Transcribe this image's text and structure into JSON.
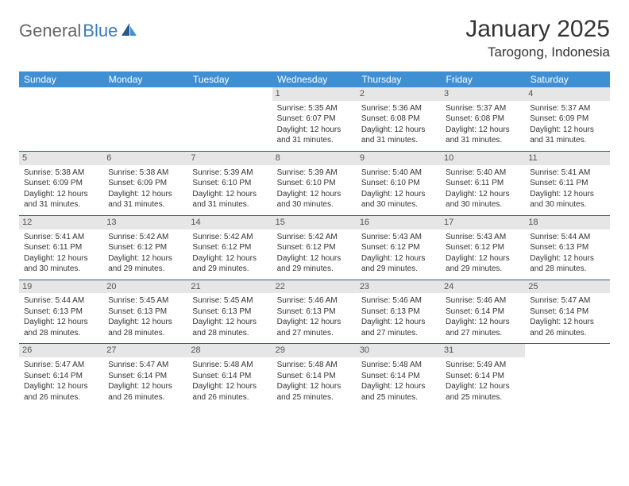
{
  "logo": {
    "text1": "General",
    "text2": "Blue"
  },
  "header": {
    "title": "January 2025",
    "location": "Tarogong, Indonesia"
  },
  "style": {
    "header_bg": "#3f8fd4",
    "daynum_bg": "#e6e6e6",
    "border_color": "#2a5a8a",
    "logo_color": "#3a7cbf"
  },
  "calendar": {
    "days_of_week": [
      "Sunday",
      "Monday",
      "Tuesday",
      "Wednesday",
      "Thursday",
      "Friday",
      "Saturday"
    ],
    "weeks": [
      [
        null,
        null,
        null,
        {
          "n": "1",
          "sr": "Sunrise: 5:35 AM",
          "ss": "Sunset: 6:07 PM",
          "d1": "Daylight: 12 hours",
          "d2": "and 31 minutes."
        },
        {
          "n": "2",
          "sr": "Sunrise: 5:36 AM",
          "ss": "Sunset: 6:08 PM",
          "d1": "Daylight: 12 hours",
          "d2": "and 31 minutes."
        },
        {
          "n": "3",
          "sr": "Sunrise: 5:37 AM",
          "ss": "Sunset: 6:08 PM",
          "d1": "Daylight: 12 hours",
          "d2": "and 31 minutes."
        },
        {
          "n": "4",
          "sr": "Sunrise: 5:37 AM",
          "ss": "Sunset: 6:09 PM",
          "d1": "Daylight: 12 hours",
          "d2": "and 31 minutes."
        }
      ],
      [
        {
          "n": "5",
          "sr": "Sunrise: 5:38 AM",
          "ss": "Sunset: 6:09 PM",
          "d1": "Daylight: 12 hours",
          "d2": "and 31 minutes."
        },
        {
          "n": "6",
          "sr": "Sunrise: 5:38 AM",
          "ss": "Sunset: 6:09 PM",
          "d1": "Daylight: 12 hours",
          "d2": "and 31 minutes."
        },
        {
          "n": "7",
          "sr": "Sunrise: 5:39 AM",
          "ss": "Sunset: 6:10 PM",
          "d1": "Daylight: 12 hours",
          "d2": "and 31 minutes."
        },
        {
          "n": "8",
          "sr": "Sunrise: 5:39 AM",
          "ss": "Sunset: 6:10 PM",
          "d1": "Daylight: 12 hours",
          "d2": "and 30 minutes."
        },
        {
          "n": "9",
          "sr": "Sunrise: 5:40 AM",
          "ss": "Sunset: 6:10 PM",
          "d1": "Daylight: 12 hours",
          "d2": "and 30 minutes."
        },
        {
          "n": "10",
          "sr": "Sunrise: 5:40 AM",
          "ss": "Sunset: 6:11 PM",
          "d1": "Daylight: 12 hours",
          "d2": "and 30 minutes."
        },
        {
          "n": "11",
          "sr": "Sunrise: 5:41 AM",
          "ss": "Sunset: 6:11 PM",
          "d1": "Daylight: 12 hours",
          "d2": "and 30 minutes."
        }
      ],
      [
        {
          "n": "12",
          "sr": "Sunrise: 5:41 AM",
          "ss": "Sunset: 6:11 PM",
          "d1": "Daylight: 12 hours",
          "d2": "and 30 minutes."
        },
        {
          "n": "13",
          "sr": "Sunrise: 5:42 AM",
          "ss": "Sunset: 6:12 PM",
          "d1": "Daylight: 12 hours",
          "d2": "and 29 minutes."
        },
        {
          "n": "14",
          "sr": "Sunrise: 5:42 AM",
          "ss": "Sunset: 6:12 PM",
          "d1": "Daylight: 12 hours",
          "d2": "and 29 minutes."
        },
        {
          "n": "15",
          "sr": "Sunrise: 5:42 AM",
          "ss": "Sunset: 6:12 PM",
          "d1": "Daylight: 12 hours",
          "d2": "and 29 minutes."
        },
        {
          "n": "16",
          "sr": "Sunrise: 5:43 AM",
          "ss": "Sunset: 6:12 PM",
          "d1": "Daylight: 12 hours",
          "d2": "and 29 minutes."
        },
        {
          "n": "17",
          "sr": "Sunrise: 5:43 AM",
          "ss": "Sunset: 6:12 PM",
          "d1": "Daylight: 12 hours",
          "d2": "and 29 minutes."
        },
        {
          "n": "18",
          "sr": "Sunrise: 5:44 AM",
          "ss": "Sunset: 6:13 PM",
          "d1": "Daylight: 12 hours",
          "d2": "and 28 minutes."
        }
      ],
      [
        {
          "n": "19",
          "sr": "Sunrise: 5:44 AM",
          "ss": "Sunset: 6:13 PM",
          "d1": "Daylight: 12 hours",
          "d2": "and 28 minutes."
        },
        {
          "n": "20",
          "sr": "Sunrise: 5:45 AM",
          "ss": "Sunset: 6:13 PM",
          "d1": "Daylight: 12 hours",
          "d2": "and 28 minutes."
        },
        {
          "n": "21",
          "sr": "Sunrise: 5:45 AM",
          "ss": "Sunset: 6:13 PM",
          "d1": "Daylight: 12 hours",
          "d2": "and 28 minutes."
        },
        {
          "n": "22",
          "sr": "Sunrise: 5:46 AM",
          "ss": "Sunset: 6:13 PM",
          "d1": "Daylight: 12 hours",
          "d2": "and 27 minutes."
        },
        {
          "n": "23",
          "sr": "Sunrise: 5:46 AM",
          "ss": "Sunset: 6:13 PM",
          "d1": "Daylight: 12 hours",
          "d2": "and 27 minutes."
        },
        {
          "n": "24",
          "sr": "Sunrise: 5:46 AM",
          "ss": "Sunset: 6:14 PM",
          "d1": "Daylight: 12 hours",
          "d2": "and 27 minutes."
        },
        {
          "n": "25",
          "sr": "Sunrise: 5:47 AM",
          "ss": "Sunset: 6:14 PM",
          "d1": "Daylight: 12 hours",
          "d2": "and 26 minutes."
        }
      ],
      [
        {
          "n": "26",
          "sr": "Sunrise: 5:47 AM",
          "ss": "Sunset: 6:14 PM",
          "d1": "Daylight: 12 hours",
          "d2": "and 26 minutes."
        },
        {
          "n": "27",
          "sr": "Sunrise: 5:47 AM",
          "ss": "Sunset: 6:14 PM",
          "d1": "Daylight: 12 hours",
          "d2": "and 26 minutes."
        },
        {
          "n": "28",
          "sr": "Sunrise: 5:48 AM",
          "ss": "Sunset: 6:14 PM",
          "d1": "Daylight: 12 hours",
          "d2": "and 26 minutes."
        },
        {
          "n": "29",
          "sr": "Sunrise: 5:48 AM",
          "ss": "Sunset: 6:14 PM",
          "d1": "Daylight: 12 hours",
          "d2": "and 25 minutes."
        },
        {
          "n": "30",
          "sr": "Sunrise: 5:48 AM",
          "ss": "Sunset: 6:14 PM",
          "d1": "Daylight: 12 hours",
          "d2": "and 25 minutes."
        },
        {
          "n": "31",
          "sr": "Sunrise: 5:49 AM",
          "ss": "Sunset: 6:14 PM",
          "d1": "Daylight: 12 hours",
          "d2": "and 25 minutes."
        },
        null
      ]
    ]
  }
}
